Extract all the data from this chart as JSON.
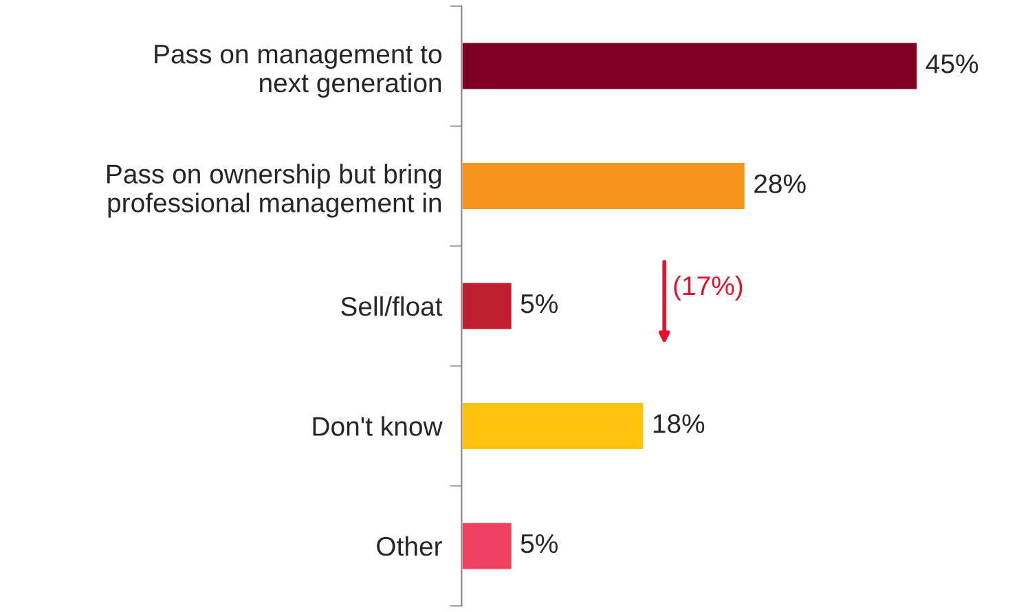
{
  "chart_data": {
    "type": "bar",
    "orientation": "horizontal",
    "categories": [
      "Pass on management to\nnext generation",
      "Pass on ownership but bring\nprofessional management in",
      "Sell/float",
      "Don't know",
      "Other"
    ],
    "values": [
      45,
      28,
      5,
      18,
      5
    ],
    "colors": [
      "#7e0021",
      "#f7941e",
      "#be1e2d",
      "#ffc20e",
      "#ef4160"
    ],
    "value_labels": [
      "45%",
      "28%",
      "5%",
      "18%",
      "5%"
    ],
    "annotations": [
      "(17%)"
    ],
    "grid": false,
    "legend": false,
    "tick_labels": "y"
  }
}
